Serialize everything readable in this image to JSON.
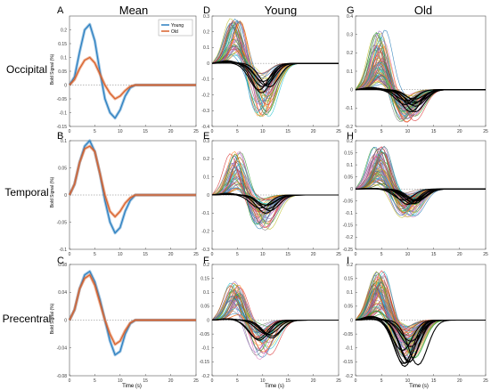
{
  "figure": {
    "column_titles": [
      "Mean",
      "Young",
      "Old"
    ],
    "row_titles": [
      "Occipital",
      "Temporal",
      "Precentral"
    ],
    "panel_letters": [
      [
        "A",
        "D",
        "G"
      ],
      [
        "B",
        "E",
        "H"
      ],
      [
        "C",
        "F",
        "I"
      ]
    ],
    "ylabel": "Bold Signal (%)",
    "xlabel": "Time (s)",
    "x_ticks": [
      "0",
      "5",
      "10",
      "15",
      "20",
      "25"
    ],
    "legend": {
      "young": "Young",
      "old": "Old"
    },
    "colors": {
      "young": "#2a7fc0",
      "old": "#d9612a",
      "black": "#000000",
      "individual": [
        "#1f77b4",
        "#d62728",
        "#2ca02c",
        "#ff7f0e",
        "#9467bd",
        "#8c564b",
        "#e377c2",
        "#bcbd22",
        "#17becf",
        "#7f7f7f"
      ]
    }
  },
  "chart_data": [
    {
      "panel": "A",
      "type": "line",
      "x": [
        0,
        1,
        2,
        3,
        4,
        5,
        6,
        7,
        8,
        9,
        10,
        11,
        12,
        13,
        14,
        15,
        16,
        17,
        18,
        19,
        20,
        21,
        22,
        23,
        24,
        25
      ],
      "xlim": [
        0,
        25
      ],
      "ylim": [
        -0.15,
        0.25
      ],
      "ytick_labels": [
        "0.2",
        "0.15",
        "0.1",
        "0.05",
        "0",
        "-0.05",
        "-0.1",
        "-0.15"
      ],
      "ytick_values": [
        0.2,
        0.15,
        0.1,
        0.05,
        0,
        -0.05,
        -0.1,
        -0.15
      ],
      "series": [
        {
          "name": "Young",
          "values": [
            0,
            0.03,
            0.12,
            0.2,
            0.22,
            0.16,
            0.05,
            -0.05,
            -0.1,
            -0.12,
            -0.09,
            -0.04,
            -0.01,
            0,
            0,
            0,
            0,
            0,
            0,
            0,
            0,
            0,
            0,
            0,
            0,
            0
          ]
        },
        {
          "name": "Old",
          "values": [
            0,
            0.02,
            0.06,
            0.09,
            0.1,
            0.08,
            0.04,
            0,
            -0.03,
            -0.05,
            -0.04,
            -0.02,
            -0.005,
            0,
            0,
            0,
            0,
            0,
            0,
            0,
            0,
            0,
            0,
            0,
            0,
            0
          ]
        }
      ]
    },
    {
      "panel": "B",
      "type": "line",
      "x": [
        0,
        1,
        2,
        3,
        4,
        5,
        6,
        7,
        8,
        9,
        10,
        11,
        12,
        13,
        14,
        15,
        16,
        17,
        18,
        19,
        20,
        21,
        22,
        23,
        24,
        25
      ],
      "xlim": [
        0,
        25
      ],
      "ylim": [
        -0.1,
        0.1
      ],
      "ytick_labels": [
        "0.1",
        "0.05",
        "0",
        "-0.05",
        "-0.1"
      ],
      "ytick_values": [
        0.1,
        0.05,
        0,
        -0.05,
        -0.1
      ],
      "series": [
        {
          "name": "Young",
          "values": [
            0,
            0.02,
            0.06,
            0.09,
            0.1,
            0.08,
            0.04,
            -0.01,
            -0.05,
            -0.07,
            -0.06,
            -0.03,
            -0.01,
            0,
            0,
            0,
            0,
            0,
            0,
            0,
            0,
            0,
            0,
            0,
            0,
            0
          ]
        },
        {
          "name": "Old",
          "values": [
            0,
            0.02,
            0.06,
            0.085,
            0.09,
            0.08,
            0.04,
            0,
            -0.03,
            -0.04,
            -0.03,
            -0.015,
            -0.005,
            0,
            0,
            0,
            0,
            0,
            0,
            0,
            0,
            0,
            0,
            0,
            0,
            0
          ]
        }
      ]
    },
    {
      "panel": "C",
      "type": "line",
      "x": [
        0,
        1,
        2,
        3,
        4,
        5,
        6,
        7,
        8,
        9,
        10,
        11,
        12,
        13,
        14,
        15,
        16,
        17,
        18,
        19,
        20,
        21,
        22,
        23,
        24,
        25
      ],
      "xlim": [
        0,
        25
      ],
      "ylim": [
        -0.08,
        0.08
      ],
      "ytick_labels": [
        "0.08",
        "0.04",
        "0",
        "-0.04",
        "-0.08"
      ],
      "ytick_values": [
        0.08,
        0.04,
        0,
        -0.04,
        -0.08
      ],
      "series": [
        {
          "name": "Young",
          "values": [
            0,
            0.015,
            0.045,
            0.065,
            0.07,
            0.055,
            0.03,
            0,
            -0.03,
            -0.05,
            -0.045,
            -0.02,
            -0.005,
            0,
            0,
            0,
            0,
            0,
            0,
            0,
            0,
            0,
            0,
            0,
            0,
            0
          ]
        },
        {
          "name": "Old",
          "values": [
            0,
            0.015,
            0.045,
            0.06,
            0.065,
            0.05,
            0.025,
            0,
            -0.02,
            -0.035,
            -0.03,
            -0.015,
            -0.004,
            0,
            0,
            0,
            0,
            0,
            0,
            0,
            0,
            0,
            0,
            0,
            0,
            0
          ]
        }
      ]
    },
    {
      "panel": "D",
      "type": "line",
      "xlim": [
        0,
        25
      ],
      "ylim": [
        -0.4,
        0.3
      ],
      "ytick_labels": [
        "0.3",
        "0.2",
        "0.1",
        "0",
        "-0.1",
        "-0.2",
        "-0.3",
        "-0.4"
      ],
      "ytick_values": [
        0.3,
        0.2,
        0.1,
        0,
        -0.1,
        -0.2,
        -0.3,
        -0.4
      ],
      "ensemble": {
        "count": 45,
        "peak_range": [
          0.05,
          0.29
        ],
        "trough_range": [
          -0.05,
          -0.34
        ],
        "highlight_trough": -0.2
      }
    },
    {
      "panel": "E",
      "type": "line",
      "xlim": [
        0,
        25
      ],
      "ylim": [
        -0.3,
        0.3
      ],
      "ytick_labels": [
        "0.3",
        "0.2",
        "0.1",
        "0",
        "-0.1",
        "-0.2",
        "-0.3"
      ],
      "ytick_values": [
        0.3,
        0.2,
        0.1,
        0,
        -0.1,
        -0.2,
        -0.3
      ],
      "ensemble": {
        "count": 45,
        "peak_range": [
          0.03,
          0.25
        ],
        "trough_range": [
          -0.02,
          -0.2
        ],
        "highlight_trough": -0.1
      }
    },
    {
      "panel": "F",
      "type": "line",
      "xlim": [
        0,
        25
      ],
      "ylim": [
        -0.2,
        0.2
      ],
      "ytick_labels": [
        "0.2",
        "0.15",
        "0.1",
        "0.05",
        "0",
        "-0.05",
        "-0.1",
        "-0.15",
        "-0.2"
      ],
      "ytick_values": [
        0.2,
        0.15,
        0.1,
        0.05,
        0,
        -0.05,
        -0.1,
        -0.15,
        -0.2
      ],
      "ensemble": {
        "count": 45,
        "peak_range": [
          0.02,
          0.14
        ],
        "trough_range": [
          -0.02,
          -0.15
        ],
        "highlight_trough": -0.07
      }
    },
    {
      "panel": "G",
      "type": "line",
      "xlim": [
        0,
        25
      ],
      "ylim": [
        -0.2,
        0.4
      ],
      "ytick_labels": [
        "0.4",
        "0.3",
        "0.2",
        "0.1",
        "0",
        "-0.1",
        "-0.2"
      ],
      "ytick_values": [
        0.4,
        0.3,
        0.2,
        0.1,
        0,
        -0.1,
        -0.2
      ],
      "ensemble": {
        "count": 70,
        "peak_range": [
          0.03,
          0.33
        ],
        "trough_range": [
          -0.02,
          -0.18
        ],
        "highlight_trough": -0.12
      }
    },
    {
      "panel": "H",
      "type": "line",
      "xlim": [
        0,
        25
      ],
      "ylim": [
        -0.25,
        0.2
      ],
      "ytick_labels": [
        "0.2",
        "0.15",
        "0.1",
        "0.05",
        "0",
        "-0.05",
        "-0.1",
        "-0.15",
        "-0.2",
        "-0.25"
      ],
      "ytick_values": [
        0.2,
        0.15,
        0.1,
        0.05,
        0,
        -0.05,
        -0.1,
        -0.15,
        -0.2,
        -0.25
      ],
      "ensemble": {
        "count": 70,
        "peak_range": [
          0.02,
          0.18
        ],
        "trough_range": [
          -0.02,
          -0.12
        ],
        "highlight_trough": -0.06
      }
    },
    {
      "panel": "I",
      "type": "line",
      "xlim": [
        0,
        25
      ],
      "ylim": [
        -0.2,
        0.2
      ],
      "ytick_labels": [
        "0.2",
        "0.15",
        "0.1",
        "0.05",
        "0",
        "-0.05",
        "-0.1",
        "-0.15",
        "-0.2"
      ],
      "ytick_values": [
        0.2,
        0.15,
        0.1,
        0.05,
        0,
        -0.05,
        -0.1,
        -0.15,
        -0.2
      ],
      "ensemble": {
        "count": 70,
        "peak_range": [
          0.02,
          0.18
        ],
        "trough_range": [
          -0.02,
          -0.14
        ],
        "highlight_trough": -0.16
      }
    }
  ]
}
